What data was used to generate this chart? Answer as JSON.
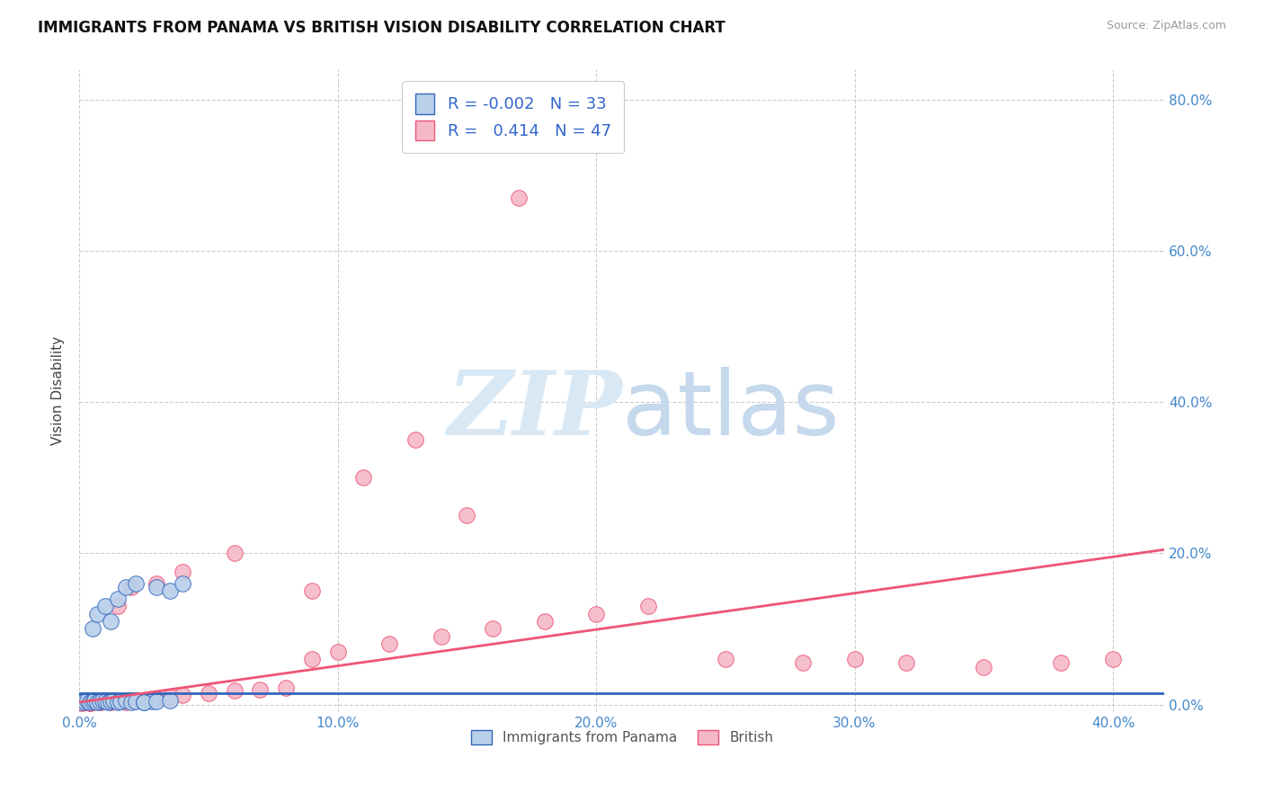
{
  "title": "IMMIGRANTS FROM PANAMA VS BRITISH VISION DISABILITY CORRELATION CHART",
  "source": "Source: ZipAtlas.com",
  "xlabel_ticks": [
    "0.0%",
    "10.0%",
    "20.0%",
    "30.0%",
    "40.0%"
  ],
  "xlabel_vals": [
    0.0,
    0.1,
    0.2,
    0.3,
    0.4
  ],
  "ylabel": "Vision Disability",
  "ylabel_ticks": [
    "0.0%",
    "20.0%",
    "40.0%",
    "60.0%",
    "80.0%"
  ],
  "ylabel_vals": [
    0.0,
    0.2,
    0.4,
    0.6,
    0.8
  ],
  "xlim": [
    0.0,
    0.42
  ],
  "ylim": [
    -0.01,
    0.84
  ],
  "legend_entry1": "R = -0.002   N = 33",
  "legend_entry2": "R =   0.414   N = 47",
  "legend_label1": "Immigrants from Panama",
  "legend_label2": "British",
  "color_panama": "#b8d0ea",
  "color_british": "#f5b8c8",
  "color_line_panama": "#3366bb",
  "color_line_british": "#ee5577",
  "background": "#ffffff",
  "grid_color": "#cccccc",
  "panama_x": [
    0.001,
    0.002,
    0.003,
    0.004,
    0.005,
    0.006,
    0.007,
    0.008,
    0.009,
    0.01,
    0.011,
    0.012,
    0.013,
    0.015,
    0.016,
    0.018,
    0.02,
    0.022,
    0.025,
    0.028,
    0.005,
    0.007,
    0.01,
    0.012,
    0.015,
    0.018,
    0.022,
    0.03,
    0.035,
    0.04,
    0.025,
    0.03,
    0.035
  ],
  "panama_y": [
    0.003,
    0.004,
    0.005,
    0.003,
    0.004,
    0.005,
    0.003,
    0.004,
    0.005,
    0.004,
    0.003,
    0.004,
    0.005,
    0.003,
    0.004,
    0.005,
    0.003,
    0.004,
    0.003,
    0.004,
    0.1,
    0.12,
    0.13,
    0.11,
    0.14,
    0.155,
    0.16,
    0.155,
    0.15,
    0.16,
    0.003,
    0.004,
    0.005
  ],
  "british_x": [
    0.001,
    0.002,
    0.003,
    0.004,
    0.005,
    0.006,
    0.008,
    0.01,
    0.012,
    0.015,
    0.018,
    0.02,
    0.025,
    0.03,
    0.035,
    0.04,
    0.05,
    0.06,
    0.07,
    0.08,
    0.09,
    0.1,
    0.12,
    0.14,
    0.16,
    0.18,
    0.2,
    0.22,
    0.25,
    0.28,
    0.3,
    0.32,
    0.35,
    0.38,
    0.4,
    0.17,
    0.13,
    0.11,
    0.15,
    0.09,
    0.06,
    0.04,
    0.03,
    0.02,
    0.015,
    0.008,
    0.004
  ],
  "british_y": [
    0.002,
    0.003,
    0.004,
    0.002,
    0.003,
    0.004,
    0.003,
    0.004,
    0.003,
    0.004,
    0.003,
    0.005,
    0.006,
    0.008,
    0.01,
    0.012,
    0.015,
    0.018,
    0.02,
    0.022,
    0.06,
    0.07,
    0.08,
    0.09,
    0.1,
    0.11,
    0.12,
    0.13,
    0.06,
    0.055,
    0.06,
    0.055,
    0.05,
    0.055,
    0.06,
    0.67,
    0.35,
    0.3,
    0.25,
    0.15,
    0.2,
    0.175,
    0.16,
    0.155,
    0.13,
    0.003,
    0.002
  ],
  "panama_trendline_x": [
    0.0,
    0.42
  ],
  "panama_trendline_y": [
    0.015,
    0.015
  ],
  "british_trendline_x": [
    0.0,
    0.42
  ],
  "british_trendline_y": [
    0.003,
    0.205
  ]
}
